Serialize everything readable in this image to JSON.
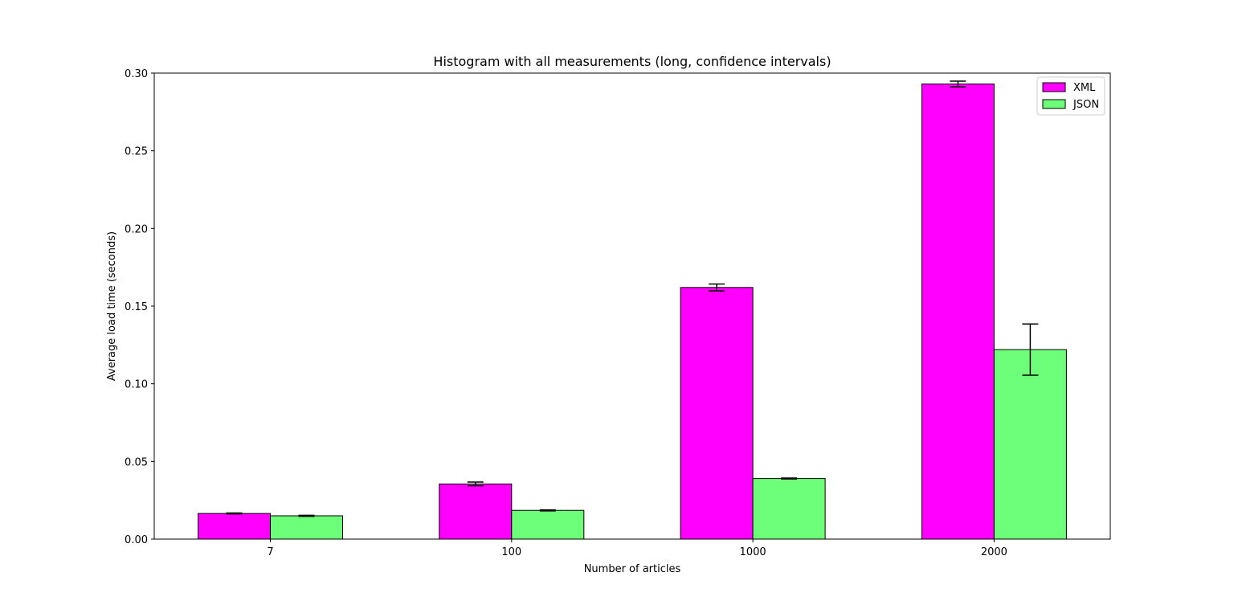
{
  "chart_data": {
    "type": "bar",
    "title": "Histogram with all measurements (long, confidence intervals)",
    "xlabel": "Number of articles",
    "ylabel": "Average load time (seconds)",
    "categories": [
      "7",
      "100",
      "1000",
      "2000"
    ],
    "ylim": [
      0,
      0.3
    ],
    "yticks": [
      "0.00",
      "0.05",
      "0.10",
      "0.15",
      "0.20",
      "0.25",
      "0.30"
    ],
    "grid": false,
    "legend_position": "top-right",
    "series": [
      {
        "name": "XML",
        "color": "#ff00ff",
        "values": [
          0.0165,
          0.0355,
          0.162,
          0.293
        ],
        "errors": [
          0.0003,
          0.0012,
          0.0022,
          0.0018
        ]
      },
      {
        "name": "JSON",
        "color": "#6dff79",
        "values": [
          0.015,
          0.0185,
          0.039,
          0.122
        ],
        "errors": [
          0.0003,
          0.0003,
          0.0003,
          0.0165
        ]
      }
    ]
  }
}
